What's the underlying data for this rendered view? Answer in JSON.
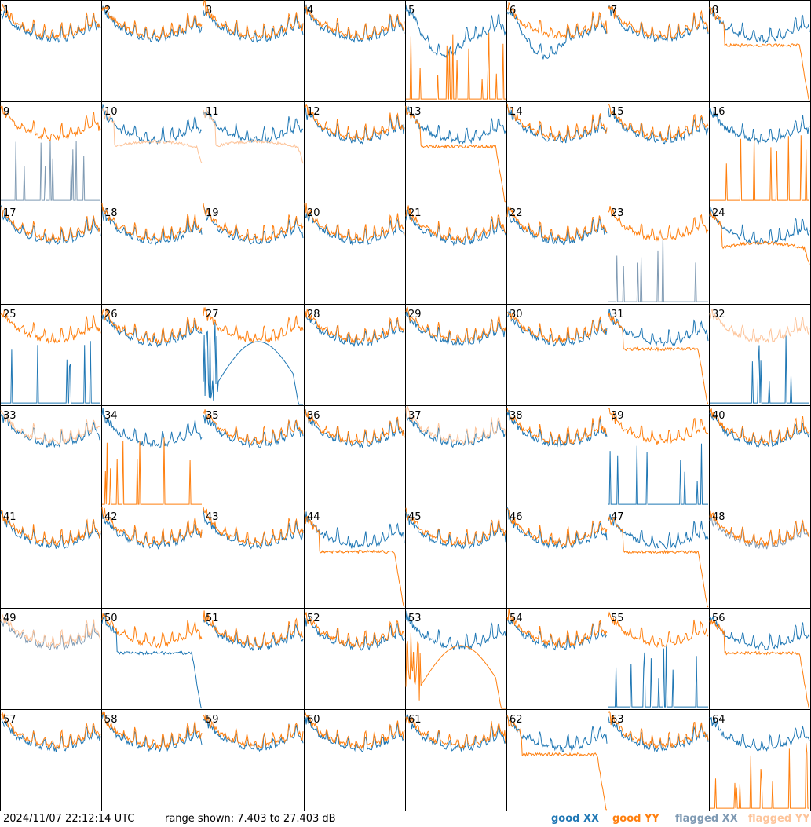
{
  "chart_data": {
    "type": "line",
    "description_units": "dB",
    "panels": [
      1,
      2,
      3,
      4,
      5,
      6,
      7,
      8,
      9,
      10,
      11,
      12,
      13,
      14,
      15,
      16,
      17,
      18,
      19,
      20,
      21,
      22,
      23,
      24,
      25,
      26,
      27,
      28,
      29,
      30,
      31,
      32,
      33,
      34,
      35,
      36,
      37,
      38,
      39,
      40,
      41,
      42,
      43,
      44,
      45,
      46,
      47,
      48,
      49,
      50,
      51,
      52,
      53,
      54,
      55,
      56,
      57,
      58,
      59,
      60,
      61,
      62,
      63,
      64
    ],
    "ylim": [
      7.403,
      27.403
    ],
    "series": [
      {
        "name": "good XX",
        "color": "#1f77b4"
      },
      {
        "name": "good YY",
        "color": "#ff7f0e"
      },
      {
        "name": "flagged XX",
        "color": "#7f9ab3"
      },
      {
        "name": "flagged YY",
        "color": "#fdc49a"
      }
    ],
    "flagged_xx_panels": [
      9,
      23,
      48,
      49
    ],
    "flagged_yy_panels": [
      10,
      11,
      32,
      33,
      37,
      49
    ],
    "panel_styles": {
      "5": {
        "xx": "dip",
        "yy": "spikes"
      },
      "6": {
        "xx": "dip"
      },
      "8": {
        "yy": "droop"
      },
      "9": {
        "xx": "spikes"
      },
      "10": {
        "yy": "plateau"
      },
      "11": {
        "yy": "plateau"
      },
      "13": {
        "yy": "droop"
      },
      "16": {
        "yy": "spikes"
      },
      "23": {
        "xx": "spikes"
      },
      "24": {
        "yy": "plateau"
      },
      "25": {
        "xx": "spikes"
      },
      "27": {
        "xx": "hump"
      },
      "31": {
        "yy": "droop"
      },
      "32": {
        "xx": "spikes"
      },
      "34": {
        "yy": "spikes"
      },
      "39": {
        "xx": "spikes"
      },
      "44": {
        "yy": "droop"
      },
      "47": {
        "yy": "droop"
      },
      "50": {
        "xx": "droop"
      },
      "53": {
        "yy": "hump"
      },
      "55": {
        "xx": "spikes"
      },
      "56": {
        "yy": "droop"
      },
      "62": {
        "yy": "droop"
      },
      "64": {
        "yy": "spikes"
      }
    }
  },
  "footer": {
    "timestamp": "2024/11/07 22:12:14 UTC",
    "range": "range shown: 7.403 to 27.403 dB",
    "legend": {
      "good_xx": "good XX",
      "good_yy": "good YY",
      "flagged_xx": "flagged XX",
      "flagged_yy": "flagged YY"
    }
  }
}
